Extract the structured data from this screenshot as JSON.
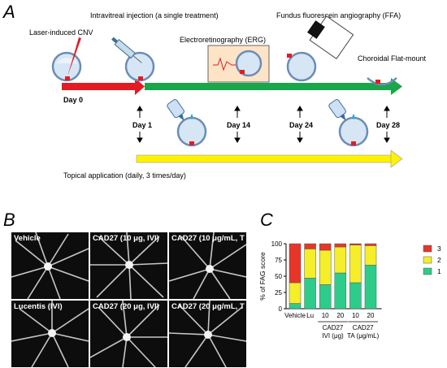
{
  "panelA": {
    "letter": "A",
    "labels": {
      "cnv": "Laser-induced CNV",
      "ivi": "Intravitreal injection (a single treatment)",
      "ffa": "Fundus fluorescein angiography (FFA)",
      "erg": "Electroretinography (ERG)",
      "flatmount": "Choroidal Flat-mount",
      "topical": "Topical application (daily, 3 times/day)"
    },
    "days": [
      "Day 0",
      "Day 1",
      "Day 14",
      "Day 24",
      "Day 28"
    ]
  },
  "panelB": {
    "letter": "B",
    "images": [
      "Vehicle",
      "CAD27 (10 μg, IVI)",
      "CAD27 (10 μg/mL, T",
      "Lucentis (IVI)",
      "CAD27 (20 μg, IVI)",
      "CAD27 (20 μg/mL, T"
    ]
  },
  "panelC": {
    "letter": "C",
    "chart_data": {
      "type": "bar",
      "stacked": true,
      "ylabel": "% of FAG score",
      "ylim": [
        0,
        100
      ],
      "yticks": [
        0,
        25,
        50,
        75,
        100
      ],
      "categories": [
        "Vehicle",
        "Lu",
        "10",
        "20",
        "10",
        "20"
      ],
      "groups": [
        {
          "label_line1": "CAD27",
          "label_line2": "IVI (μg)",
          "from": 2,
          "to": 3
        },
        {
          "label_line1": "CAD27",
          "label_line2": "TA (μg/mL)",
          "from": 4,
          "to": 5
        }
      ],
      "series": [
        {
          "name": "1",
          "color": "#2ecc8a",
          "values": [
            8,
            47,
            37,
            55,
            40,
            67
          ]
        },
        {
          "name": "2",
          "color": "#f5ee2a",
          "values": [
            32,
            45,
            53,
            40,
            58,
            30
          ]
        },
        {
          "name": "3",
          "color": "#e8352a",
          "values": [
            60,
            8,
            10,
            5,
            2,
            3
          ]
        }
      ],
      "legend": {
        "position": "right",
        "order": [
          "3",
          "2",
          "1"
        ]
      }
    }
  }
}
